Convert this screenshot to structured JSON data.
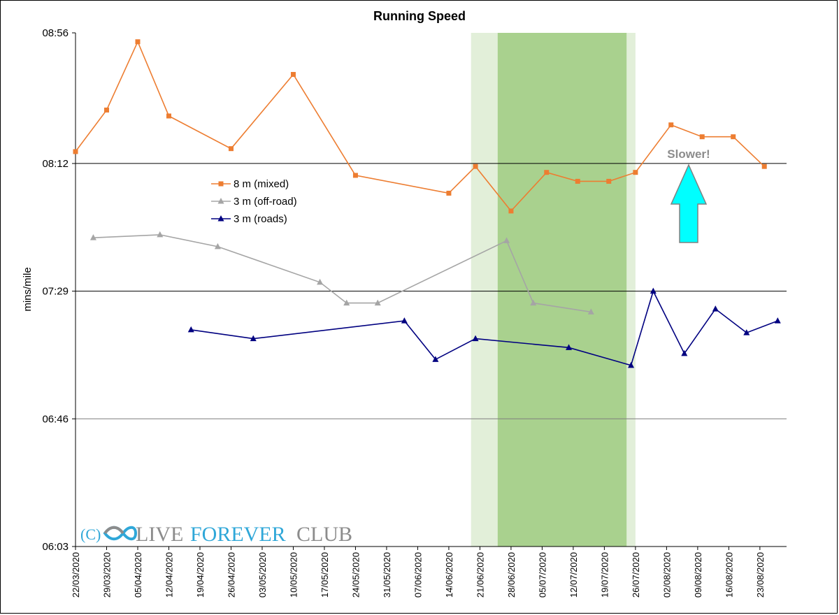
{
  "chart_data": {
    "type": "line",
    "title": "Running Speed",
    "xlabel": "",
    "ylabel": "mins/mile",
    "x_range": [
      "2020-03-22",
      "2020-08-29"
    ],
    "y_ticks": [
      "06:03",
      "06:46",
      "07:29",
      "08:12",
      "08:56"
    ],
    "y_range": [
      "06:03",
      "08:56"
    ],
    "x_tick_labels": [
      "22/03/2020",
      "29/03/2020",
      "05/04/2020",
      "12/04/2020",
      "19/04/2020",
      "26/04/2020",
      "03/05/2020",
      "10/05/2020",
      "17/05/2020",
      "24/05/2020",
      "31/05/2020",
      "07/06/2020",
      "14/06/2020",
      "21/06/2020",
      "28/06/2020",
      "05/07/2020",
      "12/07/2020",
      "19/07/2020",
      "26/07/2020",
      "02/08/2020",
      "09/08/2020",
      "16/08/2020",
      "23/08/2020"
    ],
    "gridlines": [
      "07:29",
      "08:12"
    ],
    "grid_minor": [
      "06:46"
    ],
    "legend_position": "upper-left inside plot",
    "shaded_periods": [
      {
        "start": "2020-06-19",
        "end": "2020-07-26",
        "color": "#e2efd9"
      },
      {
        "start": "2020-06-25",
        "end": "2020-07-24",
        "color": "#a9d18e"
      }
    ],
    "series": [
      {
        "name": "8 m (mixed)",
        "color": "#ed7d31",
        "marker": "square",
        "points": [
          {
            "x": "2020-03-22",
            "y": "08:16"
          },
          {
            "x": "2020-03-29",
            "y": "08:30"
          },
          {
            "x": "2020-04-05",
            "y": "08:53"
          },
          {
            "x": "2020-04-12",
            "y": "08:28"
          },
          {
            "x": "2020-04-26",
            "y": "08:17"
          },
          {
            "x": "2020-05-10",
            "y": "08:42"
          },
          {
            "x": "2020-05-24",
            "y": "08:08"
          },
          {
            "x": "2020-06-14",
            "y": "08:02"
          },
          {
            "x": "2020-06-20",
            "y": "08:11"
          },
          {
            "x": "2020-06-28",
            "y": "07:56"
          },
          {
            "x": "2020-07-06",
            "y": "08:09"
          },
          {
            "x": "2020-07-13",
            "y": "08:06"
          },
          {
            "x": "2020-07-20",
            "y": "08:06"
          },
          {
            "x": "2020-07-26",
            "y": "08:09"
          },
          {
            "x": "2020-08-03",
            "y": "08:25"
          },
          {
            "x": "2020-08-10",
            "y": "08:21"
          },
          {
            "x": "2020-08-17",
            "y": "08:21"
          },
          {
            "x": "2020-08-24",
            "y": "08:11"
          }
        ]
      },
      {
        "name": "3 m (off-road)",
        "color": "#a5a5a5",
        "marker": "triangle",
        "points": [
          {
            "x": "2020-03-26",
            "y": "07:47"
          },
          {
            "x": "2020-04-10",
            "y": "07:48"
          },
          {
            "x": "2020-04-23",
            "y": "07:44"
          },
          {
            "x": "2020-05-16",
            "y": "07:32"
          },
          {
            "x": "2020-05-22",
            "y": "07:25"
          },
          {
            "x": "2020-05-29",
            "y": "07:25"
          },
          {
            "x": "2020-06-27",
            "y": "07:46"
          },
          {
            "x": "2020-07-03",
            "y": "07:25"
          },
          {
            "x": "2020-07-16",
            "y": "07:22"
          }
        ]
      },
      {
        "name": "3 m (roads)",
        "color": "#000080",
        "marker": "triangle",
        "points": [
          {
            "x": "2020-04-17",
            "y": "07:16"
          },
          {
            "x": "2020-05-01",
            "y": "07:13"
          },
          {
            "x": "2020-06-04",
            "y": "07:19"
          },
          {
            "x": "2020-06-11",
            "y": "07:06"
          },
          {
            "x": "2020-06-20",
            "y": "07:13"
          },
          {
            "x": "2020-07-11",
            "y": "07:10"
          },
          {
            "x": "2020-07-25",
            "y": "07:04"
          },
          {
            "x": "2020-07-30",
            "y": "07:29"
          },
          {
            "x": "2020-08-06",
            "y": "07:08"
          },
          {
            "x": "2020-08-13",
            "y": "07:23"
          },
          {
            "x": "2020-08-20",
            "y": "07:15"
          },
          {
            "x": "2020-08-27",
            "y": "07:19"
          }
        ]
      }
    ],
    "annotations": [
      {
        "text": "Slower!",
        "arrow": "up",
        "arrow_color": "#00ffff"
      }
    ]
  },
  "watermark": {
    "copyright": "(C)",
    "live": "LIVE",
    "forever": "FOREVER",
    "club": "CLUB",
    "icon": "infinity-logo"
  }
}
